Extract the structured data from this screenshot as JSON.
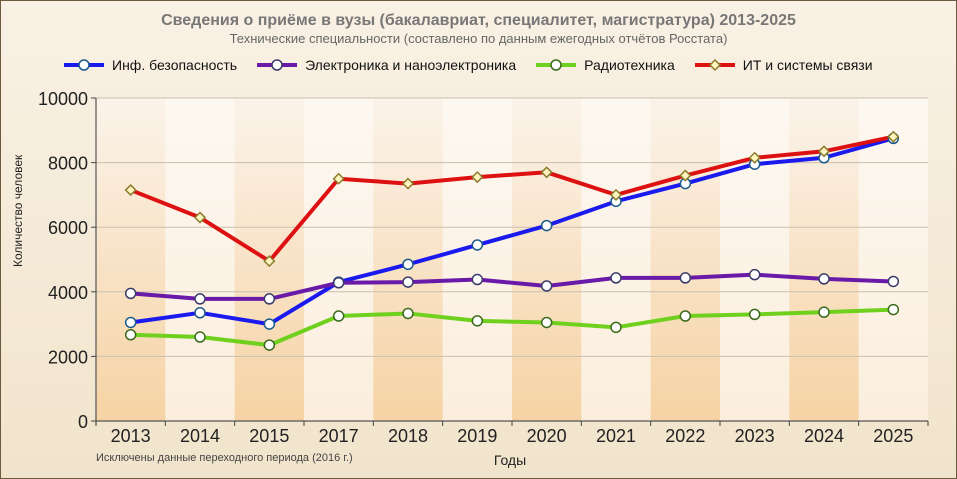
{
  "chart_data": {
    "type": "line",
    "title": "Сведения о приёме в вузы (бакалавриат, специалитет, магистратура) 2013-2025",
    "subtitle": "Технические специальности (составлено по данным ежегодных отчётов Росстата)",
    "xlabel": "Годы",
    "ylabel": "Количество человек",
    "footnote": "Исключены данные переходного периода (2016 г.)",
    "categories": [
      "2013",
      "2014",
      "2015",
      "2017",
      "2018",
      "2019",
      "2020",
      "2021",
      "2022",
      "2023",
      "2024",
      "2025"
    ],
    "ylim": [
      0,
      10000
    ],
    "yticks": [
      0,
      2000,
      4000,
      6000,
      8000,
      10000
    ],
    "grid": true,
    "legend_position": "top",
    "series": [
      {
        "name": "Инф. безопасность",
        "color": "#1a1aee",
        "marker": "circle",
        "values": [
          3050,
          3350,
          3000,
          4300,
          4850,
          5450,
          6050,
          6800,
          7350,
          7950,
          8150,
          8750
        ]
      },
      {
        "name": "Электроника и наноэлектроника",
        "color": "#6a1aa8",
        "marker": "circle",
        "values": [
          3950,
          3780,
          3780,
          4280,
          4300,
          4380,
          4180,
          4430,
          4430,
          4530,
          4400,
          4320
        ]
      },
      {
        "name": "Радиотехника",
        "color": "#6fd11e",
        "marker": "circle",
        "values": [
          2670,
          2600,
          2350,
          3250,
          3330,
          3100,
          3050,
          2900,
          3250,
          3300,
          3370,
          3450
        ]
      },
      {
        "name": "ИТ и системы связи",
        "color": "#dd1111",
        "marker": "diamond",
        "values": [
          7150,
          6300,
          4950,
          7500,
          7350,
          7550,
          7700,
          7000,
          7600,
          8150,
          8350,
          8800
        ]
      }
    ]
  }
}
